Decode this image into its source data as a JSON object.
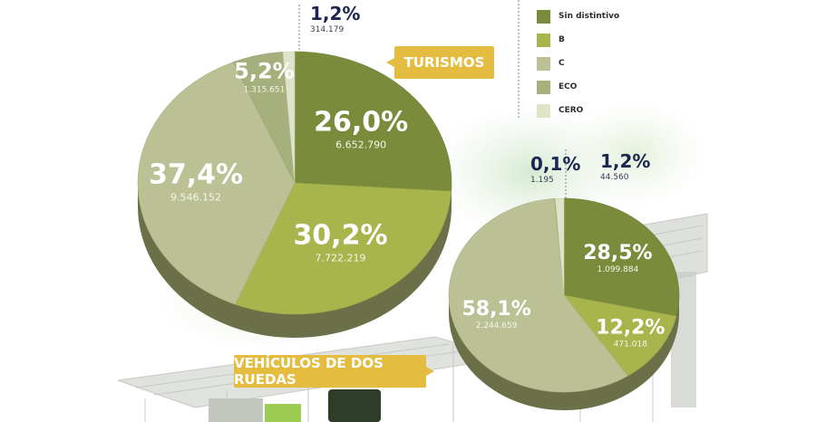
{
  "colors": {
    "sin_distintivo": "#7a8c3b",
    "b": "#a7b54c",
    "c": "#bcc095",
    "eco": "#a6b07c",
    "cero": "#dfe3c8",
    "badge": "#e4bc3f",
    "navy": "#1a2650"
  },
  "legend": [
    {
      "label": "Sin distintivo",
      "color": "#7a8c3b"
    },
    {
      "label": "B",
      "color": "#a7b54c"
    },
    {
      "label": "C",
      "color": "#bcc095"
    },
    {
      "label": "ECO",
      "color": "#a6b07c"
    },
    {
      "label": "CERO",
      "color": "#dfe3c8"
    }
  ],
  "badges": {
    "turismos": "TURISMOS",
    "dos_ruedas": "VEHÍCULOS DE DOS RUEDAS"
  },
  "chart_data": [
    {
      "type": "pie",
      "title": "TURISMOS",
      "slices": [
        {
          "category": "Sin distintivo",
          "percent": 26.0,
          "percent_label": "26,0%",
          "count_label": "6.652.790",
          "color": "#7a8c3b"
        },
        {
          "category": "B",
          "percent": 30.2,
          "percent_label": "30,2%",
          "count_label": "7.722.219",
          "color": "#a7b54c"
        },
        {
          "category": "C",
          "percent": 37.4,
          "percent_label": "37,4%",
          "count_label": "9.546.152",
          "color": "#bcc095"
        },
        {
          "category": "ECO",
          "percent": 5.2,
          "percent_label": "5,2%",
          "count_label": "1.315.651",
          "color": "#a6b07c"
        },
        {
          "category": "CERO",
          "percent": 1.2,
          "percent_label": "1,2%",
          "count_label": "314.179",
          "color": "#dfe3c8"
        }
      ]
    },
    {
      "type": "pie",
      "title": "VEHÍCULOS DE DOS RUEDAS",
      "slices": [
        {
          "category": "Sin distintivo",
          "percent": 28.5,
          "percent_label": "28,5%",
          "count_label": "1.099.884",
          "color": "#7a8c3b"
        },
        {
          "category": "B",
          "percent": 12.2,
          "percent_label": "12,2%",
          "count_label": "471.018",
          "color": "#a7b54c"
        },
        {
          "category": "C",
          "percent": 58.1,
          "percent_label": "58,1%",
          "count_label": "2.244.659",
          "color": "#bcc095"
        },
        {
          "category": "ECO",
          "percent": 0.1,
          "percent_label": "0,1%",
          "count_label": "1.195",
          "color": "#a6b07c"
        },
        {
          "category": "CERO",
          "percent": 1.2,
          "percent_label": "1,2%",
          "count_label": "44.560",
          "color": "#dfe3c8"
        }
      ]
    }
  ]
}
